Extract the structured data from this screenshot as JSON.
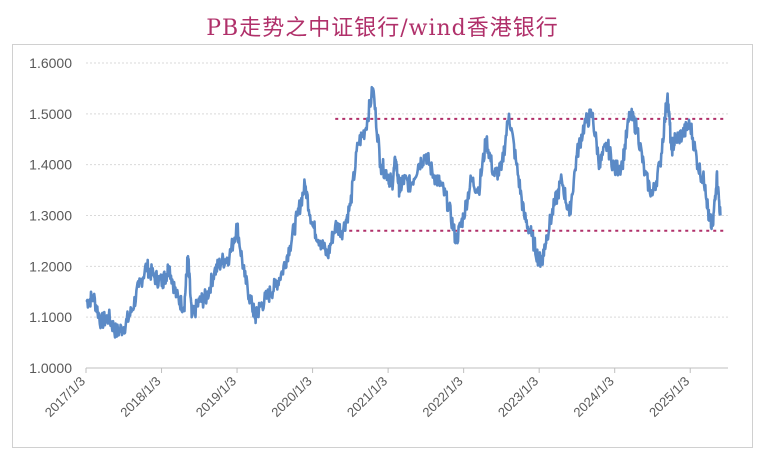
{
  "chart_data": {
    "type": "line",
    "title": "PB走势之中证银行/wind香港银行",
    "xlabel": "",
    "ylabel": "",
    "ylim": [
      1.0,
      1.6
    ],
    "yticks": [
      "1.6000",
      "1.5000",
      "1.4000",
      "1.3000",
      "1.2000",
      "1.1000",
      "1.0000"
    ],
    "xticks": [
      "2017/1/3",
      "2018/1/3",
      "2019/1/3",
      "2020/1/3",
      "2021/1/3",
      "2022/1/3",
      "2023/1/3",
      "2024/1/3",
      "2025/1/3"
    ],
    "grid": true,
    "legend": "none",
    "series": [
      {
        "x": [
          2017.0,
          2017.1,
          2017.2,
          2017.3,
          2017.4,
          2017.5,
          2017.6,
          2017.7,
          2017.8,
          2017.9,
          2018.0,
          2018.05,
          2018.1,
          2018.2,
          2018.3,
          2018.35,
          2018.4,
          2018.5,
          2018.6,
          2018.7,
          2018.8,
          2018.9,
          2019.0,
          2019.1,
          2019.2,
          2019.25,
          2019.3,
          2019.4,
          2019.5,
          2019.6,
          2019.7,
          2019.8,
          2019.9,
          2020.0,
          2020.1,
          2020.2,
          2020.3,
          2020.4,
          2020.5,
          2020.6,
          2020.7,
          2020.8,
          2020.9,
          2021.0,
          2021.05,
          2021.1,
          2021.15,
          2021.2,
          2021.3,
          2021.4,
          2021.5,
          2021.6,
          2021.7,
          2021.8,
          2021.9,
          2022.0,
          2022.1,
          2022.2,
          2022.3,
          2022.4,
          2022.5,
          2022.6,
          2022.7,
          2022.8,
          2022.9,
          2023.0,
          2023.05,
          2023.1,
          2023.2,
          2023.3,
          2023.4,
          2023.5,
          2023.6,
          2023.7,
          2023.8,
          2023.9,
          2024.0,
          2024.1,
          2024.2,
          2024.3,
          2024.4,
          2024.5,
          2024.6,
          2024.7,
          2024.75,
          2024.8,
          2024.9,
          2025.0,
          2025.1,
          2025.2,
          2025.25,
          2025.3,
          2025.35,
          2025.4
        ],
        "values": [
          1.13,
          1.14,
          1.09,
          1.1,
          1.07,
          1.08,
          1.11,
          1.16,
          1.2,
          1.18,
          1.17,
          1.18,
          1.2,
          1.14,
          1.12,
          1.22,
          1.1,
          1.13,
          1.14,
          1.19,
          1.21,
          1.22,
          1.28,
          1.18,
          1.12,
          1.1,
          1.12,
          1.14,
          1.16,
          1.19,
          1.24,
          1.3,
          1.36,
          1.28,
          1.25,
          1.22,
          1.28,
          1.27,
          1.32,
          1.44,
          1.47,
          1.55,
          1.4,
          1.38,
          1.36,
          1.41,
          1.35,
          1.37,
          1.36,
          1.4,
          1.42,
          1.38,
          1.36,
          1.32,
          1.25,
          1.3,
          1.37,
          1.35,
          1.45,
          1.38,
          1.39,
          1.5,
          1.4,
          1.3,
          1.26,
          1.21,
          1.22,
          1.26,
          1.32,
          1.37,
          1.3,
          1.42,
          1.48,
          1.5,
          1.4,
          1.44,
          1.39,
          1.4,
          1.5,
          1.47,
          1.38,
          1.34,
          1.4,
          1.54,
          1.43,
          1.45,
          1.46,
          1.48,
          1.4,
          1.36,
          1.29,
          1.28,
          1.38,
          1.3
        ]
      }
    ],
    "reference_lines": [
      {
        "y": 1.49,
        "x_start": 2020.3,
        "x_end": 2025.45,
        "color": "#b0306a",
        "style": "dotted"
      },
      {
        "y": 1.27,
        "x_start": 2020.3,
        "x_end": 2025.45,
        "color": "#b0306a",
        "style": "dotted"
      }
    ],
    "colors": {
      "line": "#5b8ac6",
      "reference": "#b0306a",
      "grid": "#d9d9d9",
      "tick": "#595959"
    }
  }
}
